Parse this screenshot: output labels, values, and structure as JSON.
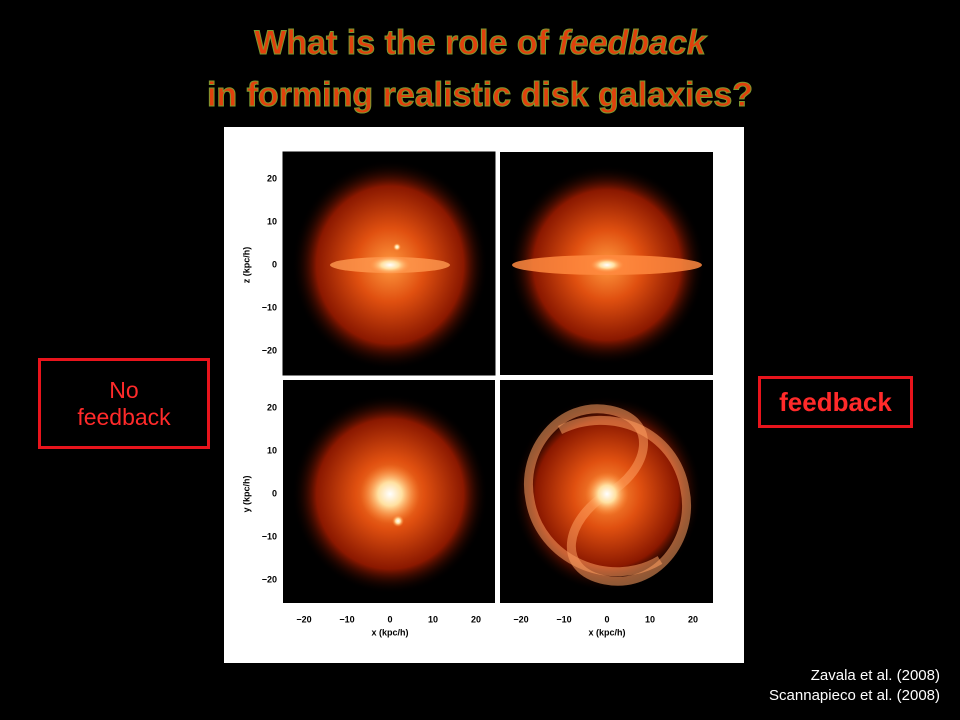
{
  "title": {
    "line1_start": "What is the role of ",
    "line1_emphasis": "feedback",
    "line2": "in forming realistic disk galaxies?"
  },
  "left_label": "No feedback",
  "right_label": "feedback",
  "figure": {
    "y_ticks": [
      "20",
      "10",
      "0",
      "−10",
      "−20"
    ],
    "x_ticks": [
      "−20",
      "−10",
      "0",
      "10",
      "20"
    ],
    "y_label_top": "z (kpc/h)",
    "y_label_bottom": "y (kpc/h)",
    "x_label": "x (kpc/h)"
  },
  "references": [
    "Zavala et al. (2008)",
    "Scannapieco et al. (2008)"
  ]
}
